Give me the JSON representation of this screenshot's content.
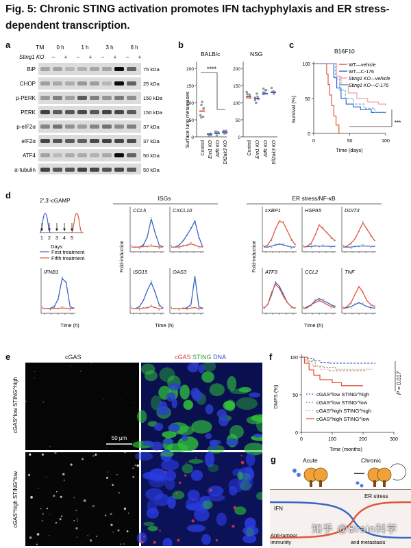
{
  "figure": {
    "title": "Fig. 5: Chronic STING activation promotes IFN tachyphylaxis and ER stress-dependent transcription."
  },
  "panel_a": {
    "label": "a",
    "tm_label": "TM",
    "sting_label": "Sting1 KO",
    "timepoints": [
      "0 h",
      "1 h",
      "3 h",
      "6 h"
    ],
    "signs": [
      "–",
      "+",
      "–",
      "+",
      "–",
      "+",
      "–",
      "+"
    ],
    "rows": [
      {
        "name": "BiP",
        "kda": "75 kDa"
      },
      {
        "name": "CHOP",
        "kda": "25 kDa"
      },
      {
        "name": "p-PERK",
        "kda": "150 kDa"
      },
      {
        "name": "PERK",
        "kda": "150 kDa"
      },
      {
        "name": "p-eIF2α",
        "kda": "37 kDa"
      },
      {
        "name": "eIF2α",
        "kda": "37 kDa"
      },
      {
        "name": "ATF4",
        "kda": "50 kDa"
      },
      {
        "name": "α-tubulin",
        "kda": "50 kDa"
      }
    ]
  },
  "panel_b": {
    "label": "b",
    "ylabel": "Surface lung metastases",
    "left_title": "BALB/c",
    "right_title": "NSG",
    "significance": "****",
    "left_categories": [
      "Control",
      "Ern1 KO",
      "Atf6 KO",
      "Eif2ak3 KO"
    ],
    "right_categories": [
      "Control",
      "Ern1 KO",
      "Atf6 KO",
      "Eif2ak3 KO"
    ],
    "left_ticks": [
      "0",
      "50",
      "100",
      "150",
      "200"
    ],
    "right_ticks": [
      "0",
      "50",
      "100",
      "150",
      "200"
    ]
  },
  "panel_c": {
    "label": "c",
    "title": "B16F10",
    "ylabel": "Survival (%)",
    "xlabel": "Time (days)",
    "yticks": [
      "0",
      "50",
      "100"
    ],
    "xticks": [
      "0",
      "50",
      "100"
    ],
    "significance": "***",
    "legend": [
      "WT—vehicle",
      "WT—C-176",
      "Sting1 KO—vehicle",
      "Sting1 KO—C-176"
    ]
  },
  "panel_d": {
    "label": "d",
    "schematic_title": "2',3'-cGAMP",
    "schematic_days": [
      "1",
      "2",
      "3",
      "4",
      "5"
    ],
    "schematic_xlabel": "Days",
    "legend_first": "First treatment",
    "legend_fifth": "Fifth treatment",
    "isg_header": "ISGs",
    "er_header": "ER stress/NF-κB",
    "ylabel": "Fold-induction",
    "xlabel": "Time (h)",
    "plots": [
      {
        "name": "IFNB1"
      },
      {
        "name": "CCL5"
      },
      {
        "name": "CXCL10"
      },
      {
        "name": "ISG15"
      },
      {
        "name": "OAS3"
      },
      {
        "name": "sXBP1"
      },
      {
        "name": "HSPA5"
      },
      {
        "name": "DDIT3"
      },
      {
        "name": "ATF3"
      },
      {
        "name": "CCL2"
      },
      {
        "name": "TNF"
      }
    ]
  },
  "panel_e": {
    "label": "e",
    "left_header": "cGAS",
    "right_header_parts": [
      "cGAS",
      "STING",
      "DNA"
    ],
    "row1_label": "cGAS^low STING^high",
    "row2_label": "cGAS^high STING^low",
    "scalebar": "50 μm"
  },
  "panel_f": {
    "label": "f",
    "ylabel": "DMFS (%)",
    "xlabel": "Time (months)",
    "yticks": [
      "0",
      "50",
      "100"
    ],
    "xticks": [
      "0",
      "100",
      "200",
      "300"
    ],
    "pvalue": "P = 0.017",
    "legend": [
      "cGAS^low STING^high",
      "cGAS^low STING^low",
      "cGAS^high STING^high",
      "cGAS^high STING^low"
    ]
  },
  "panel_g": {
    "label": "g",
    "acute": "Acute",
    "chronic": "Chronic",
    "ifn": "IFN",
    "er": "ER stress",
    "left_bottom_1": "Anti-tumour",
    "left_bottom_2": "immunity",
    "right_bottom_2": "and metastasis"
  },
  "watermark": "知乎 @Brain科学",
  "colors": {
    "blue": "#3a64c8",
    "red": "#e0553d",
    "lightblue": "#5aa9e6",
    "pink": "#f2a0a5"
  }
}
